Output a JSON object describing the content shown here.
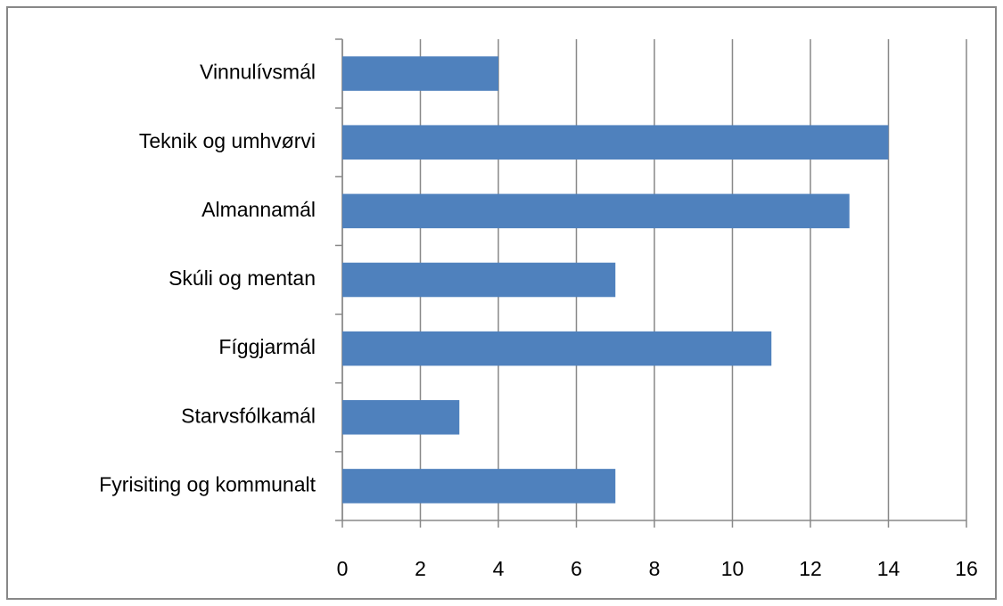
{
  "chart_data": {
    "type": "bar",
    "orientation": "horizontal",
    "categories": [
      "Vinnulívsmál",
      "Teknik og umhvørvi",
      "Almannamál",
      "Skúli og mentan",
      "Fíggjarmál",
      "Starvsfólkamál",
      "Fyrisiting og kommunalt"
    ],
    "values": [
      4,
      14,
      13,
      7,
      11,
      3,
      7
    ],
    "color": "#4f81bd",
    "xlim": [
      0,
      16
    ],
    "xticks": [
      0,
      2,
      4,
      6,
      8,
      10,
      12,
      14,
      16
    ],
    "grid": true
  }
}
